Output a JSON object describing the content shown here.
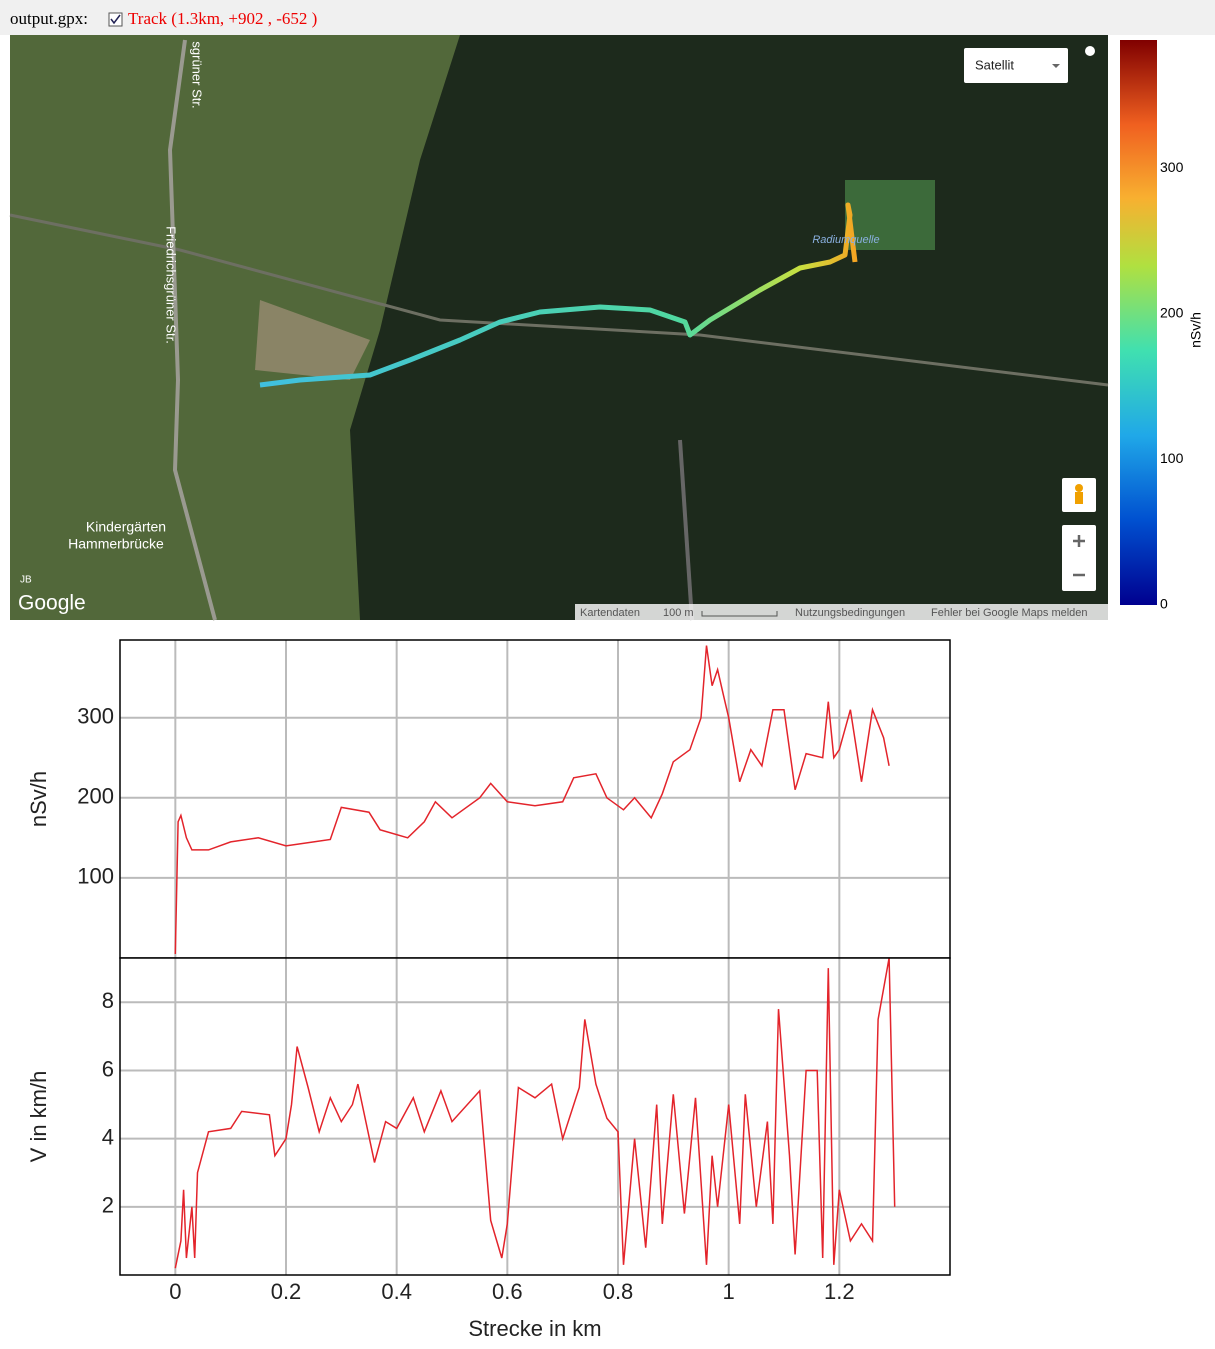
{
  "header": {
    "file": "output.gpx:",
    "track": "Track (1.3km, +902 , -652 )"
  },
  "map": {
    "map_type": "Satellit",
    "streets": [
      "sgrüner Str.",
      "Friedrichsgrüner Str."
    ],
    "poi": "Radiumquelle",
    "place": [
      "Kindergärten",
      "Hammerbrücke"
    ],
    "initials": "JB",
    "logo": "Google",
    "footer": [
      "Kartendaten",
      "100 m",
      "Nutzungsbedingungen",
      "Fehler bei Google Maps melden"
    ]
  },
  "colorbar": {
    "label": "nSv/h",
    "lim": [
      0,
      388
    ],
    "ticks": [
      0,
      100,
      200,
      300
    ]
  },
  "chart_data": [
    {
      "type": "line",
      "ylabel": "nSv/h",
      "color": "#e3242b",
      "grid": true,
      "xlim": [
        -0.1,
        1.4
      ],
      "ylim": [
        0,
        397
      ],
      "yticks": [
        100,
        200,
        300
      ],
      "x": [
        0,
        0.005,
        0.01,
        0.02,
        0.03,
        0.06,
        0.1,
        0.15,
        0.2,
        0.25,
        0.28,
        0.3,
        0.35,
        0.37,
        0.42,
        0.45,
        0.47,
        0.5,
        0.55,
        0.57,
        0.6,
        0.65,
        0.7,
        0.72,
        0.76,
        0.78,
        0.81,
        0.83,
        0.86,
        0.88,
        0.9,
        0.93,
        0.95,
        0.96,
        0.97,
        0.98,
        0.99,
        1.0,
        1.02,
        1.04,
        1.06,
        1.08,
        1.1,
        1.12,
        1.14,
        1.17,
        1.18,
        1.19,
        1.2,
        1.22,
        1.24,
        1.26,
        1.28,
        1.29
      ],
      "values": [
        5,
        170,
        178,
        150,
        135,
        135,
        145,
        150,
        140,
        145,
        148,
        188,
        182,
        160,
        150,
        170,
        195,
        175,
        200,
        218,
        195,
        190,
        195,
        225,
        230,
        200,
        185,
        200,
        175,
        205,
        245,
        260,
        300,
        390,
        340,
        360,
        330,
        300,
        220,
        260,
        240,
        310,
        310,
        210,
        255,
        250,
        320,
        250,
        260,
        310,
        220,
        310,
        275,
        240
      ]
    },
    {
      "type": "line",
      "ylabel": "V in km/h",
      "xlabel": "Strecke in km",
      "color": "#e3242b",
      "grid": true,
      "xlim": [
        -0.1,
        1.4
      ],
      "ylim": [
        0,
        9.3
      ],
      "yticks": [
        2,
        4,
        6,
        8
      ],
      "xticks": [
        0,
        0.2,
        0.4,
        0.6,
        0.8,
        1,
        1.2
      ],
      "x": [
        0,
        0.01,
        0.015,
        0.02,
        0.03,
        0.035,
        0.04,
        0.06,
        0.1,
        0.12,
        0.17,
        0.18,
        0.2,
        0.21,
        0.22,
        0.24,
        0.26,
        0.28,
        0.3,
        0.32,
        0.33,
        0.36,
        0.38,
        0.4,
        0.43,
        0.45,
        0.48,
        0.5,
        0.55,
        0.57,
        0.59,
        0.6,
        0.62,
        0.65,
        0.68,
        0.7,
        0.73,
        0.74,
        0.76,
        0.78,
        0.8,
        0.81,
        0.83,
        0.85,
        0.87,
        0.88,
        0.9,
        0.92,
        0.94,
        0.96,
        0.97,
        0.98,
        1.0,
        1.02,
        1.03,
        1.05,
        1.07,
        1.08,
        1.09,
        1.11,
        1.12,
        1.14,
        1.16,
        1.17,
        1.18,
        1.19,
        1.2,
        1.22,
        1.24,
        1.26,
        1.27,
        1.29,
        1.3
      ],
      "values": [
        0.2,
        1,
        2.5,
        0.5,
        2,
        0.5,
        3,
        4.2,
        4.3,
        4.8,
        4.7,
        3.5,
        4,
        5,
        6.7,
        5.5,
        4.2,
        5.2,
        4.5,
        5,
        5.6,
        3.3,
        4.5,
        4.3,
        5.2,
        4.2,
        5.4,
        4.5,
        5.4,
        1.6,
        0.5,
        1.5,
        5.5,
        5.2,
        5.6,
        4,
        5.5,
        7.5,
        5.6,
        4.6,
        4.2,
        0.3,
        4,
        0.8,
        5,
        1.5,
        5.3,
        1.8,
        5.2,
        0.3,
        3.5,
        2,
        5,
        1.5,
        5.3,
        2,
        4.5,
        1.5,
        7.8,
        3.5,
        0.6,
        6,
        6,
        0.5,
        9,
        0.3,
        2.5,
        1,
        1.5,
        1,
        7.5,
        9.3,
        2
      ]
    }
  ]
}
